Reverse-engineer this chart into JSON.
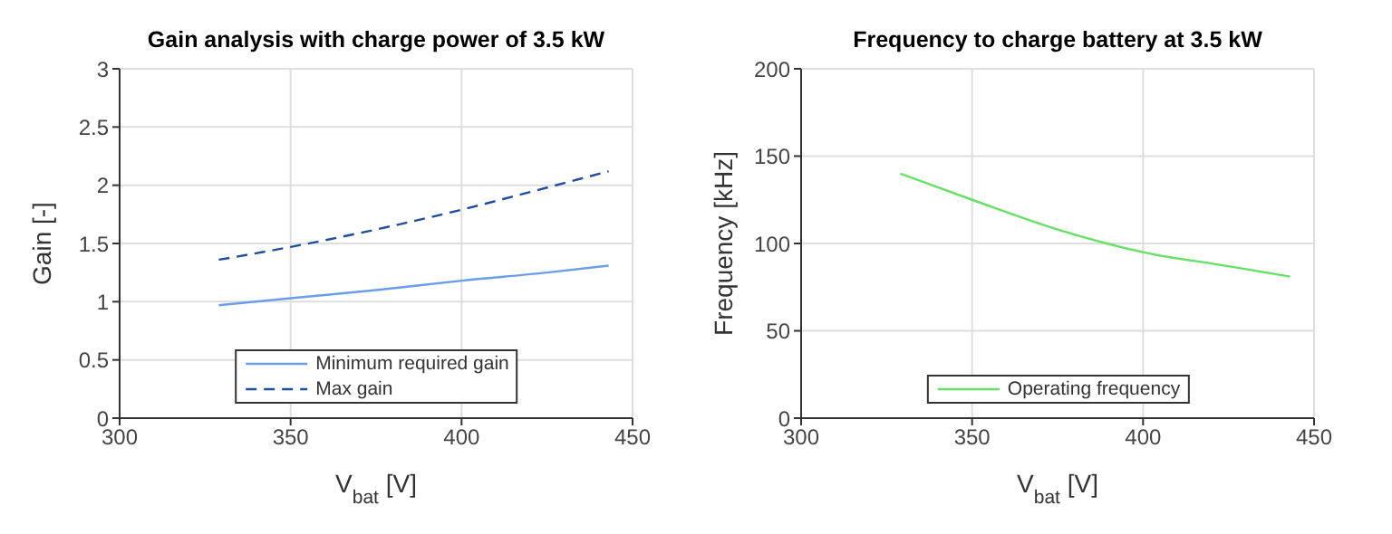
{
  "chart_data": [
    {
      "type": "line",
      "title": "Gain analysis with charge power of 3.5 kW",
      "xlabel": "V$_{bat}$ [V]",
      "ylabel": "Gain [-]",
      "xlim": [
        300,
        450
      ],
      "xticks": [
        300,
        350,
        400,
        450
      ],
      "ylim": [
        0,
        3
      ],
      "yticks": [
        0,
        0.5,
        1,
        1.5,
        2,
        2.5,
        3
      ],
      "grid": true,
      "legend": "bottom",
      "x": [
        329,
        350,
        375,
        400,
        425,
        443
      ],
      "series": [
        {
          "name": "Minimum required gain",
          "color": "#6a9ee8",
          "values": [
            0.97,
            1.03,
            1.1,
            1.18,
            1.25,
            1.31
          ],
          "line_style": "solid"
        },
        {
          "name": "Max gain",
          "color": "#1f4e9c",
          "values": [
            1.36,
            1.47,
            1.62,
            1.79,
            1.98,
            2.12
          ],
          "line_style": "dashed"
        }
      ]
    },
    {
      "type": "line",
      "title": "Frequency to charge battery at 3.5 kW",
      "xlabel": "V$_{bat}$ [V]",
      "ylabel": "Frequency [kHz]",
      "xlim": [
        300,
        450
      ],
      "xticks": [
        300,
        350,
        400,
        450
      ],
      "ylim": [
        0,
        200
      ],
      "yticks": [
        0,
        50,
        100,
        150,
        200
      ],
      "grid": true,
      "legend": "bottom",
      "x": [
        329,
        350,
        375,
        400,
        425,
        443
      ],
      "series": [
        {
          "name": "Operating frequency",
          "color": "#66e066",
          "values": [
            140,
            125,
            108,
            95,
            87,
            81
          ],
          "line_style": "solid"
        }
      ]
    }
  ]
}
